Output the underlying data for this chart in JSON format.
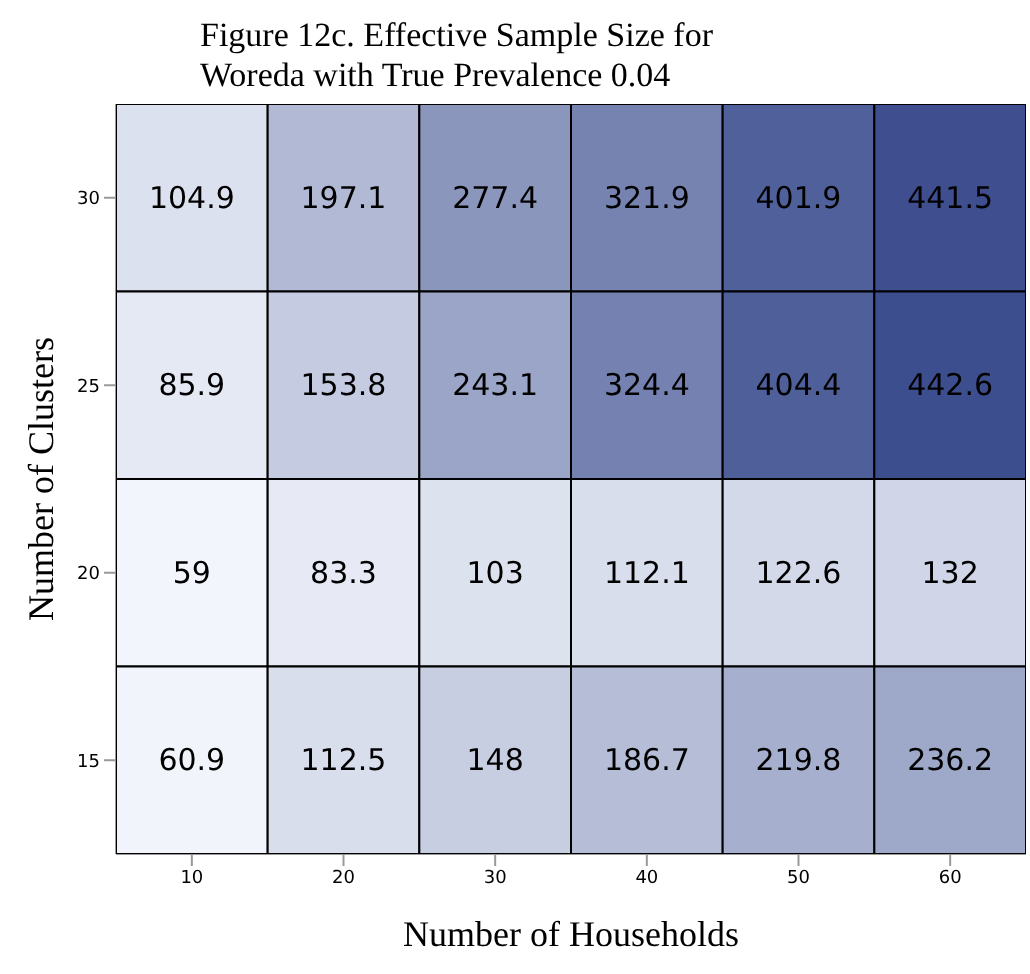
{
  "chart_data": {
    "type": "heatmap",
    "title": "Figure 12c. Effective Sample Size for\nWoreda with True Prevalence 0.04",
    "xlabel": "Number of Households",
    "ylabel": "Number of Clusters",
    "categories": [
      "10",
      "20",
      "30",
      "40",
      "50",
      "60"
    ],
    "y_categories": [
      "30",
      "25",
      "20",
      "15"
    ],
    "cells": [
      [
        104.9,
        197.1,
        277.4,
        321.9,
        401.9,
        441.5
      ],
      [
        85.9,
        153.8,
        243.1,
        324.4,
        404.4,
        442.6
      ],
      [
        59,
        83.3,
        103,
        112.1,
        122.6,
        132
      ],
      [
        60.9,
        112.5,
        148,
        186.7,
        219.8,
        236.2
      ]
    ],
    "color": "#3d4e8e",
    "data_labels": true
  }
}
